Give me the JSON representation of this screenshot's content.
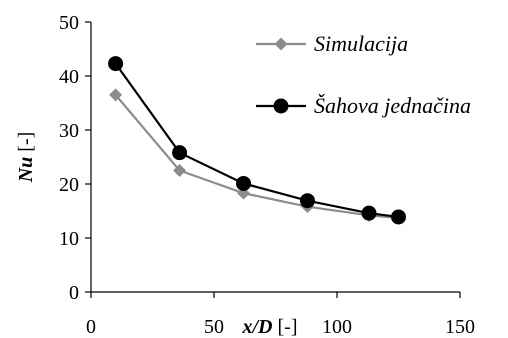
{
  "chart_data": {
    "type": "line",
    "xlabel_main": "x/D",
    "xlabel_unit": " [-]",
    "ylabel_main": "Nu",
    "ylabel_unit": " [-]",
    "xlim": [
      0,
      150
    ],
    "ylim": [
      0,
      50
    ],
    "xticks": [
      0,
      50,
      100,
      150
    ],
    "yticks": [
      0,
      10,
      20,
      30,
      40,
      50
    ],
    "grid": false,
    "legend_position": "top-right",
    "series": [
      {
        "name": "Simulacija",
        "color": "#8c8c8c",
        "marker": "diamond",
        "x": [
          10,
          36,
          62,
          88,
          113,
          125
        ],
        "y": [
          36.5,
          22.5,
          18.3,
          15.8,
          14.2,
          13.7
        ]
      },
      {
        "name": "Šahova jednačina",
        "color": "#000000",
        "marker": "circle",
        "x": [
          10,
          36,
          62,
          88,
          113,
          125
        ],
        "y": [
          42.3,
          25.8,
          20.1,
          16.9,
          14.6,
          13.9
        ]
      }
    ]
  }
}
